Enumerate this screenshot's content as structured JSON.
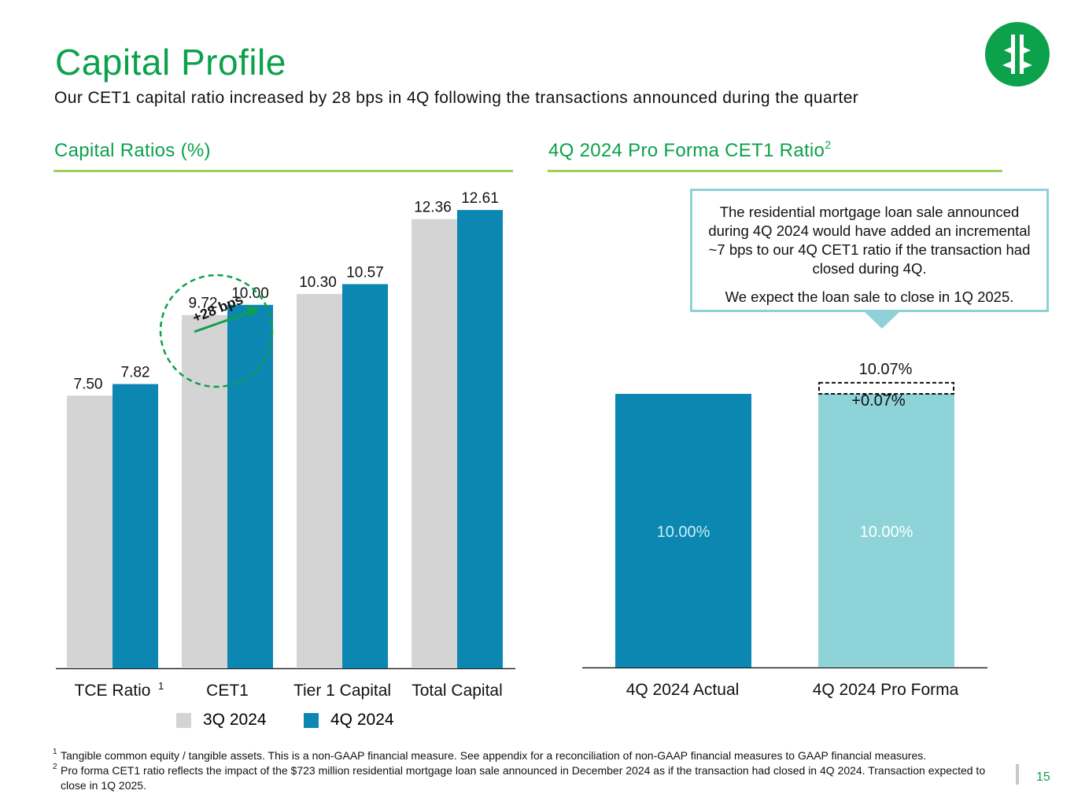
{
  "header": {
    "title": "Capital Profile",
    "subtitle": "Our CET1 capital ratio increased by 28 bps in 4Q following the transactions announced during the quarter"
  },
  "logo": {
    "icon": "tree-logo-icon",
    "color": "#0ca14b"
  },
  "colors": {
    "green": "#0ca14b",
    "rule": "#9fd05a",
    "gray_bar": "#d4d4d4",
    "blue_bar": "#0b87b2",
    "light_teal": "#8dd3d8"
  },
  "left_section": {
    "heading": "Capital Ratios (%)"
  },
  "right_section": {
    "heading": "4Q 2024 Pro Forma CET1 Ratio",
    "heading_sup": "2"
  },
  "chart_data": [
    {
      "type": "bar",
      "title": "Capital Ratios (%)",
      "categories": [
        "TCE Ratio",
        "CET1",
        "Tier 1 Capital",
        "Total Capital"
      ],
      "category_sups": [
        "1",
        "",
        "",
        ""
      ],
      "series": [
        {
          "name": "3Q 2024",
          "color": "#d4d4d4",
          "values": [
            7.5,
            9.72,
            10.3,
            12.36
          ],
          "labels": [
            "7.50",
            "9.72",
            "10.30",
            "12.36"
          ]
        },
        {
          "name": "4Q 2024",
          "color": "#0b87b2",
          "values": [
            7.82,
            10.0,
            10.57,
            12.61
          ],
          "labels": [
            "7.82",
            "10.00",
            "10.57",
            "12.61"
          ]
        }
      ],
      "ylim": [
        0,
        13.5
      ],
      "annotation": "+28 bps",
      "legend_position": "bottom"
    },
    {
      "type": "bar",
      "stacked": true,
      "title": "4Q 2024 Pro Forma CET1 Ratio",
      "categories": [
        "4Q 2024 Actual",
        "4Q 2024 Pro Forma"
      ],
      "base_values": [
        10.0,
        10.0
      ],
      "base_labels": [
        "10.00%",
        "10.00%"
      ],
      "increment_value": 0.07,
      "increment_label": "+0.07%",
      "total_label": "10.07%",
      "ylim": [
        0,
        10.4
      ]
    }
  ],
  "callout": {
    "line1": "The residential mortgage loan sale announced during 4Q 2024 would have added an incremental ~7 bps to our 4Q CET1 ratio if the transaction had closed during 4Q.",
    "line2": "We expect the loan sale to close in 1Q 2025."
  },
  "footnotes": [
    {
      "marker": "1",
      "text": "Tangible common equity / tangible assets. This is a non-GAAP financial measure. See appendix for a reconciliation of non-GAAP financial measures to GAAP financial measures."
    },
    {
      "marker": "2",
      "text": "Pro forma CET1 ratio reflects the impact of the $723 million residential mortgage loan sale announced in December 2024 as if the transaction had closed in 4Q 2024. Transaction expected to close in 1Q 2025."
    }
  ],
  "page_number": "15"
}
